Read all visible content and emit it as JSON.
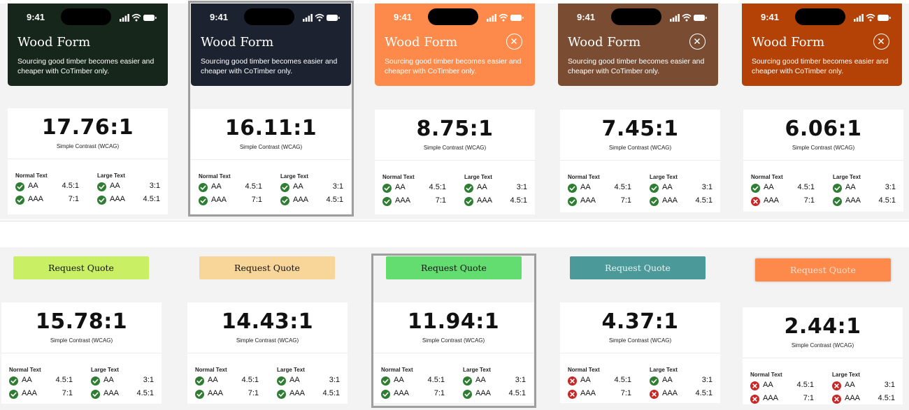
{
  "top_row": {
    "panels": [
      {
        "time": "9:41",
        "title": "Wood Form",
        "description": "Sourcing good timber becomes easier and cheaper with CoTimber only.",
        "bg": "#17261a",
        "show_close": false
      },
      {
        "time": "9:41",
        "title": "Wood Form",
        "description": "Sourcing good timber becomes easier and cheaper with CoTimber only.",
        "bg": "#1d2231",
        "show_close": false
      },
      {
        "time": "9:41",
        "title": "Wood Form",
        "description": "Sourcing good timber becomes easier and cheaper with CoTimber only.",
        "bg": "#fd8a4a",
        "show_close": true
      },
      {
        "time": "9:41",
        "title": "Wood Form",
        "description": "Sourcing good timber becomes easier and cheaper with CoTimber only.",
        "bg": "#7a4d33",
        "show_close": true
      },
      {
        "time": "9:41",
        "title": "Wood Form",
        "description": "Sourcing good timber becomes easier and cheaper with CoTimber only.",
        "bg": "#b44105",
        "show_close": true
      }
    ],
    "cards": [
      {
        "ratio": "17.76:1",
        "label": "Simple Contrast (WCAG)",
        "normal_heading": "Normal Text",
        "large_heading": "Large Text",
        "normal": [
          {
            "level": "AA",
            "req": "4.5:1",
            "pass": true
          },
          {
            "level": "AAA",
            "req": "7:1",
            "pass": true
          }
        ],
        "large": [
          {
            "level": "AA",
            "req": "3:1",
            "pass": true
          },
          {
            "level": "AAA",
            "req": "4.5:1",
            "pass": true
          }
        ]
      },
      {
        "ratio": "16.11:1",
        "label": "Simple Contrast (WCAG)",
        "normal_heading": "Normal Text",
        "large_heading": "Large Text",
        "normal": [
          {
            "level": "AA",
            "req": "4.5:1",
            "pass": true
          },
          {
            "level": "AAA",
            "req": "7:1",
            "pass": true
          }
        ],
        "large": [
          {
            "level": "AA",
            "req": "3:1",
            "pass": true
          },
          {
            "level": "AAA",
            "req": "4.5:1",
            "pass": true
          }
        ]
      },
      {
        "ratio": "8.75:1",
        "label": "Simple Contrast (WCAG)",
        "normal_heading": "Normal Text",
        "large_heading": "Large Text",
        "normal": [
          {
            "level": "AA",
            "req": "4.5:1",
            "pass": true
          },
          {
            "level": "AAA",
            "req": "7:1",
            "pass": true
          }
        ],
        "large": [
          {
            "level": "AA",
            "req": "3:1",
            "pass": true
          },
          {
            "level": "AAA",
            "req": "4.5:1",
            "pass": true
          }
        ]
      },
      {
        "ratio": "7.45:1",
        "label": "Simple Contrast (WCAG)",
        "normal_heading": "Normal Text",
        "large_heading": "Large Text",
        "normal": [
          {
            "level": "AA",
            "req": "4.5:1",
            "pass": true
          },
          {
            "level": "AAA",
            "req": "7:1",
            "pass": true
          }
        ],
        "large": [
          {
            "level": "AA",
            "req": "3:1",
            "pass": true
          },
          {
            "level": "AAA",
            "req": "4.5:1",
            "pass": true
          }
        ]
      },
      {
        "ratio": "6.06:1",
        "label": "Simple Contrast (WCAG)",
        "normal_heading": "Normal Text",
        "large_heading": "Large Text",
        "normal": [
          {
            "level": "AA",
            "req": "4.5:1",
            "pass": true
          },
          {
            "level": "AAA",
            "req": "7:1",
            "pass": false
          }
        ],
        "large": [
          {
            "level": "AA",
            "req": "3:1",
            "pass": true
          },
          {
            "level": "AAA",
            "req": "4.5:1",
            "pass": true
          }
        ]
      }
    ]
  },
  "bottom_row": {
    "buttons": [
      {
        "label": "Request Quote",
        "bg": "#c9ef64",
        "fg": "#111111"
      },
      {
        "label": "Request Quote",
        "bg": "#f8d699",
        "fg": "#111111"
      },
      {
        "label": "Request Quote",
        "bg": "#63dd70",
        "fg": "#111111"
      },
      {
        "label": "Request Quote",
        "bg": "#4b9a99",
        "fg": "#e8f2f2"
      },
      {
        "label": "Request Quote",
        "bg": "#fd8a4a",
        "fg": "#fde0cf"
      }
    ],
    "cards": [
      {
        "ratio": "15.78:1",
        "label": "Simple Contrast (WCAG)",
        "normal_heading": "Normal Text",
        "large_heading": "Large Text",
        "normal": [
          {
            "level": "AA",
            "req": "4.5:1",
            "pass": true
          },
          {
            "level": "AAA",
            "req": "7:1",
            "pass": true
          }
        ],
        "large": [
          {
            "level": "AA",
            "req": "3:1",
            "pass": true
          },
          {
            "level": "AAA",
            "req": "4.5:1",
            "pass": true
          }
        ]
      },
      {
        "ratio": "14.43:1",
        "label": "Simple Contrast (WCAG)",
        "normal_heading": "Normal Text",
        "large_heading": "Large Text",
        "normal": [
          {
            "level": "AA",
            "req": "4.5:1",
            "pass": true
          },
          {
            "level": "AAA",
            "req": "7:1",
            "pass": true
          }
        ],
        "large": [
          {
            "level": "AA",
            "req": "3:1",
            "pass": true
          },
          {
            "level": "AAA",
            "req": "4.5:1",
            "pass": true
          }
        ]
      },
      {
        "ratio": "11.94:1",
        "label": "Simple Contrast (WCAG)",
        "normal_heading": "Normal Text",
        "large_heading": "Large Text",
        "normal": [
          {
            "level": "AA",
            "req": "4.5:1",
            "pass": true
          },
          {
            "level": "AAA",
            "req": "7:1",
            "pass": true
          }
        ],
        "large": [
          {
            "level": "AA",
            "req": "3:1",
            "pass": true
          },
          {
            "level": "AAA",
            "req": "4.5:1",
            "pass": true
          }
        ]
      },
      {
        "ratio": "4.37:1",
        "label": "Simple Contrast (WCAG)",
        "normal_heading": "Normal Text",
        "large_heading": "Large Text",
        "normal": [
          {
            "level": "AA",
            "req": "4.5:1",
            "pass": false
          },
          {
            "level": "AAA",
            "req": "7:1",
            "pass": false
          }
        ],
        "large": [
          {
            "level": "AA",
            "req": "3:1",
            "pass": true
          },
          {
            "level": "AAA",
            "req": "4.5:1",
            "pass": false
          }
        ]
      },
      {
        "ratio": "2.44:1",
        "label": "Simple Contrast (WCAG)",
        "normal_heading": "Normal Text",
        "large_heading": "Large Text",
        "normal": [
          {
            "level": "AA",
            "req": "4.5:1",
            "pass": false
          },
          {
            "level": "AAA",
            "req": "7:1",
            "pass": false
          }
        ],
        "large": [
          {
            "level": "AA",
            "req": "3:1",
            "pass": false
          },
          {
            "level": "AAA",
            "req": "4.5:1",
            "pass": false
          }
        ]
      }
    ]
  },
  "colors": {
    "pass": "#2e7d32",
    "fail": "#c62828"
  }
}
